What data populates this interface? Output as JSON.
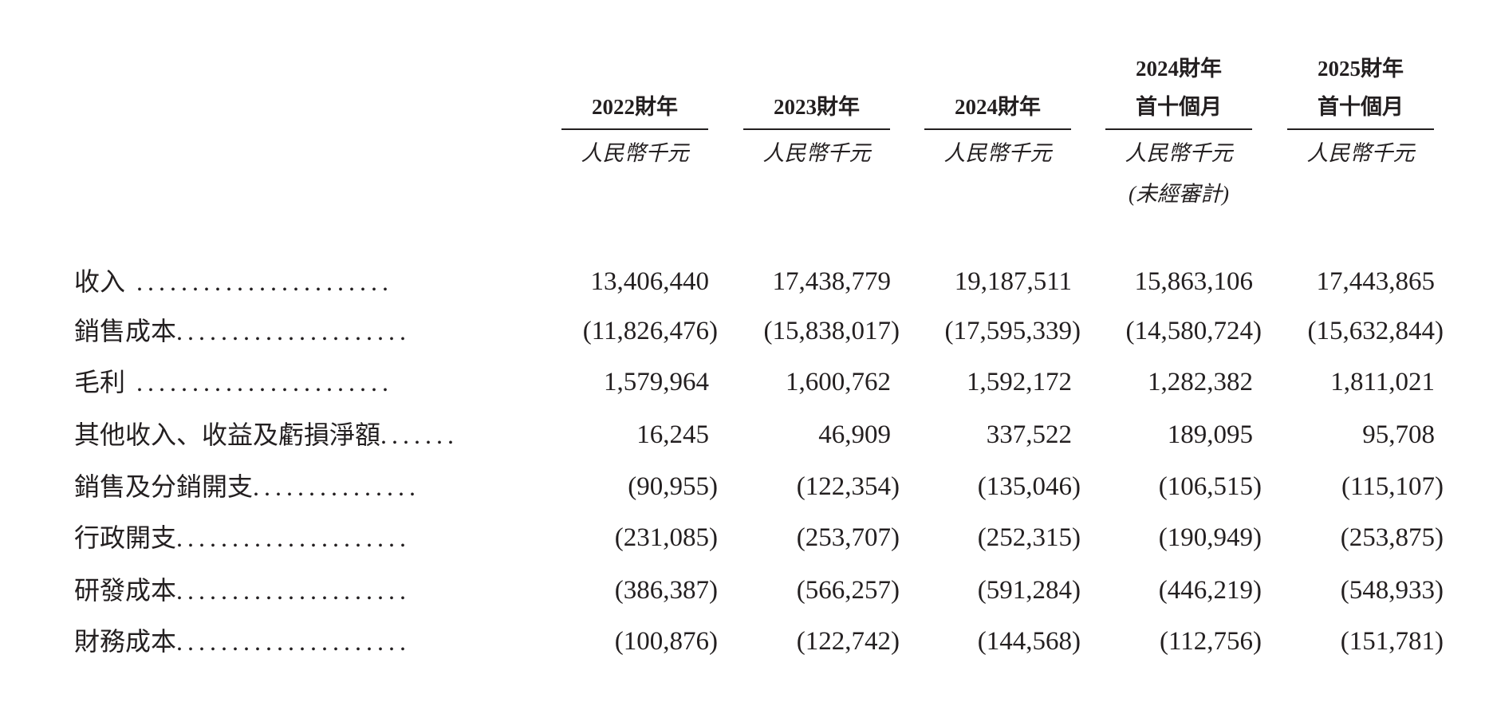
{
  "columns": [
    {
      "line1": "",
      "line2": "2022財年",
      "unit": "人民幣千元",
      "note": ""
    },
    {
      "line1": "",
      "line2": "2023財年",
      "unit": "人民幣千元",
      "note": ""
    },
    {
      "line1": "",
      "line2": "2024財年",
      "unit": "人民幣千元",
      "note": ""
    },
    {
      "line1": "2024財年",
      "line2": "首十個月",
      "unit": "人民幣千元",
      "note": "(未經審計)"
    },
    {
      "line1": "2025財年",
      "line2": "首十個月",
      "unit": "人民幣千元",
      "note": ""
    }
  ],
  "rows": [
    {
      "label": "收入",
      "dots": " .......................",
      "values": [
        "13,406,440",
        "17,438,779",
        "19,187,511",
        "15,863,106",
        "17,443,865"
      ]
    },
    {
      "label": "銷售成本",
      "dots": ".....................",
      "values": [
        "(11,826,476)",
        "(15,838,017)",
        "(17,595,339)",
        "(14,580,724)",
        "(15,632,844)"
      ]
    },
    {
      "label": "毛利",
      "dots": " .......................",
      "values": [
        "1,579,964",
        "1,600,762",
        "1,592,172",
        "1,282,382",
        "1,811,021"
      ]
    },
    {
      "label": "其他收入、收益及虧損淨額",
      "dots": ".......",
      "values": [
        "16,245",
        "46,909",
        "337,522",
        "189,095",
        "95,708"
      ]
    },
    {
      "label": "銷售及分銷開支",
      "dots": "...............",
      "values": [
        "(90,955)",
        "(122,354)",
        "(135,046)",
        "(106,515)",
        "(115,107)"
      ]
    },
    {
      "label": "行政開支",
      "dots": ".....................",
      "values": [
        "(231,085)",
        "(253,707)",
        "(252,315)",
        "(190,949)",
        "(253,875)"
      ]
    },
    {
      "label": "研發成本",
      "dots": ".....................",
      "values": [
        "(386,387)",
        "(566,257)",
        "(591,284)",
        "(446,219)",
        "(548,933)"
      ]
    },
    {
      "label": "財務成本",
      "dots": ".....................",
      "values": [
        "(100,876)",
        "(122,742)",
        "(144,568)",
        "(112,756)",
        "(151,781)"
      ]
    }
  ]
}
